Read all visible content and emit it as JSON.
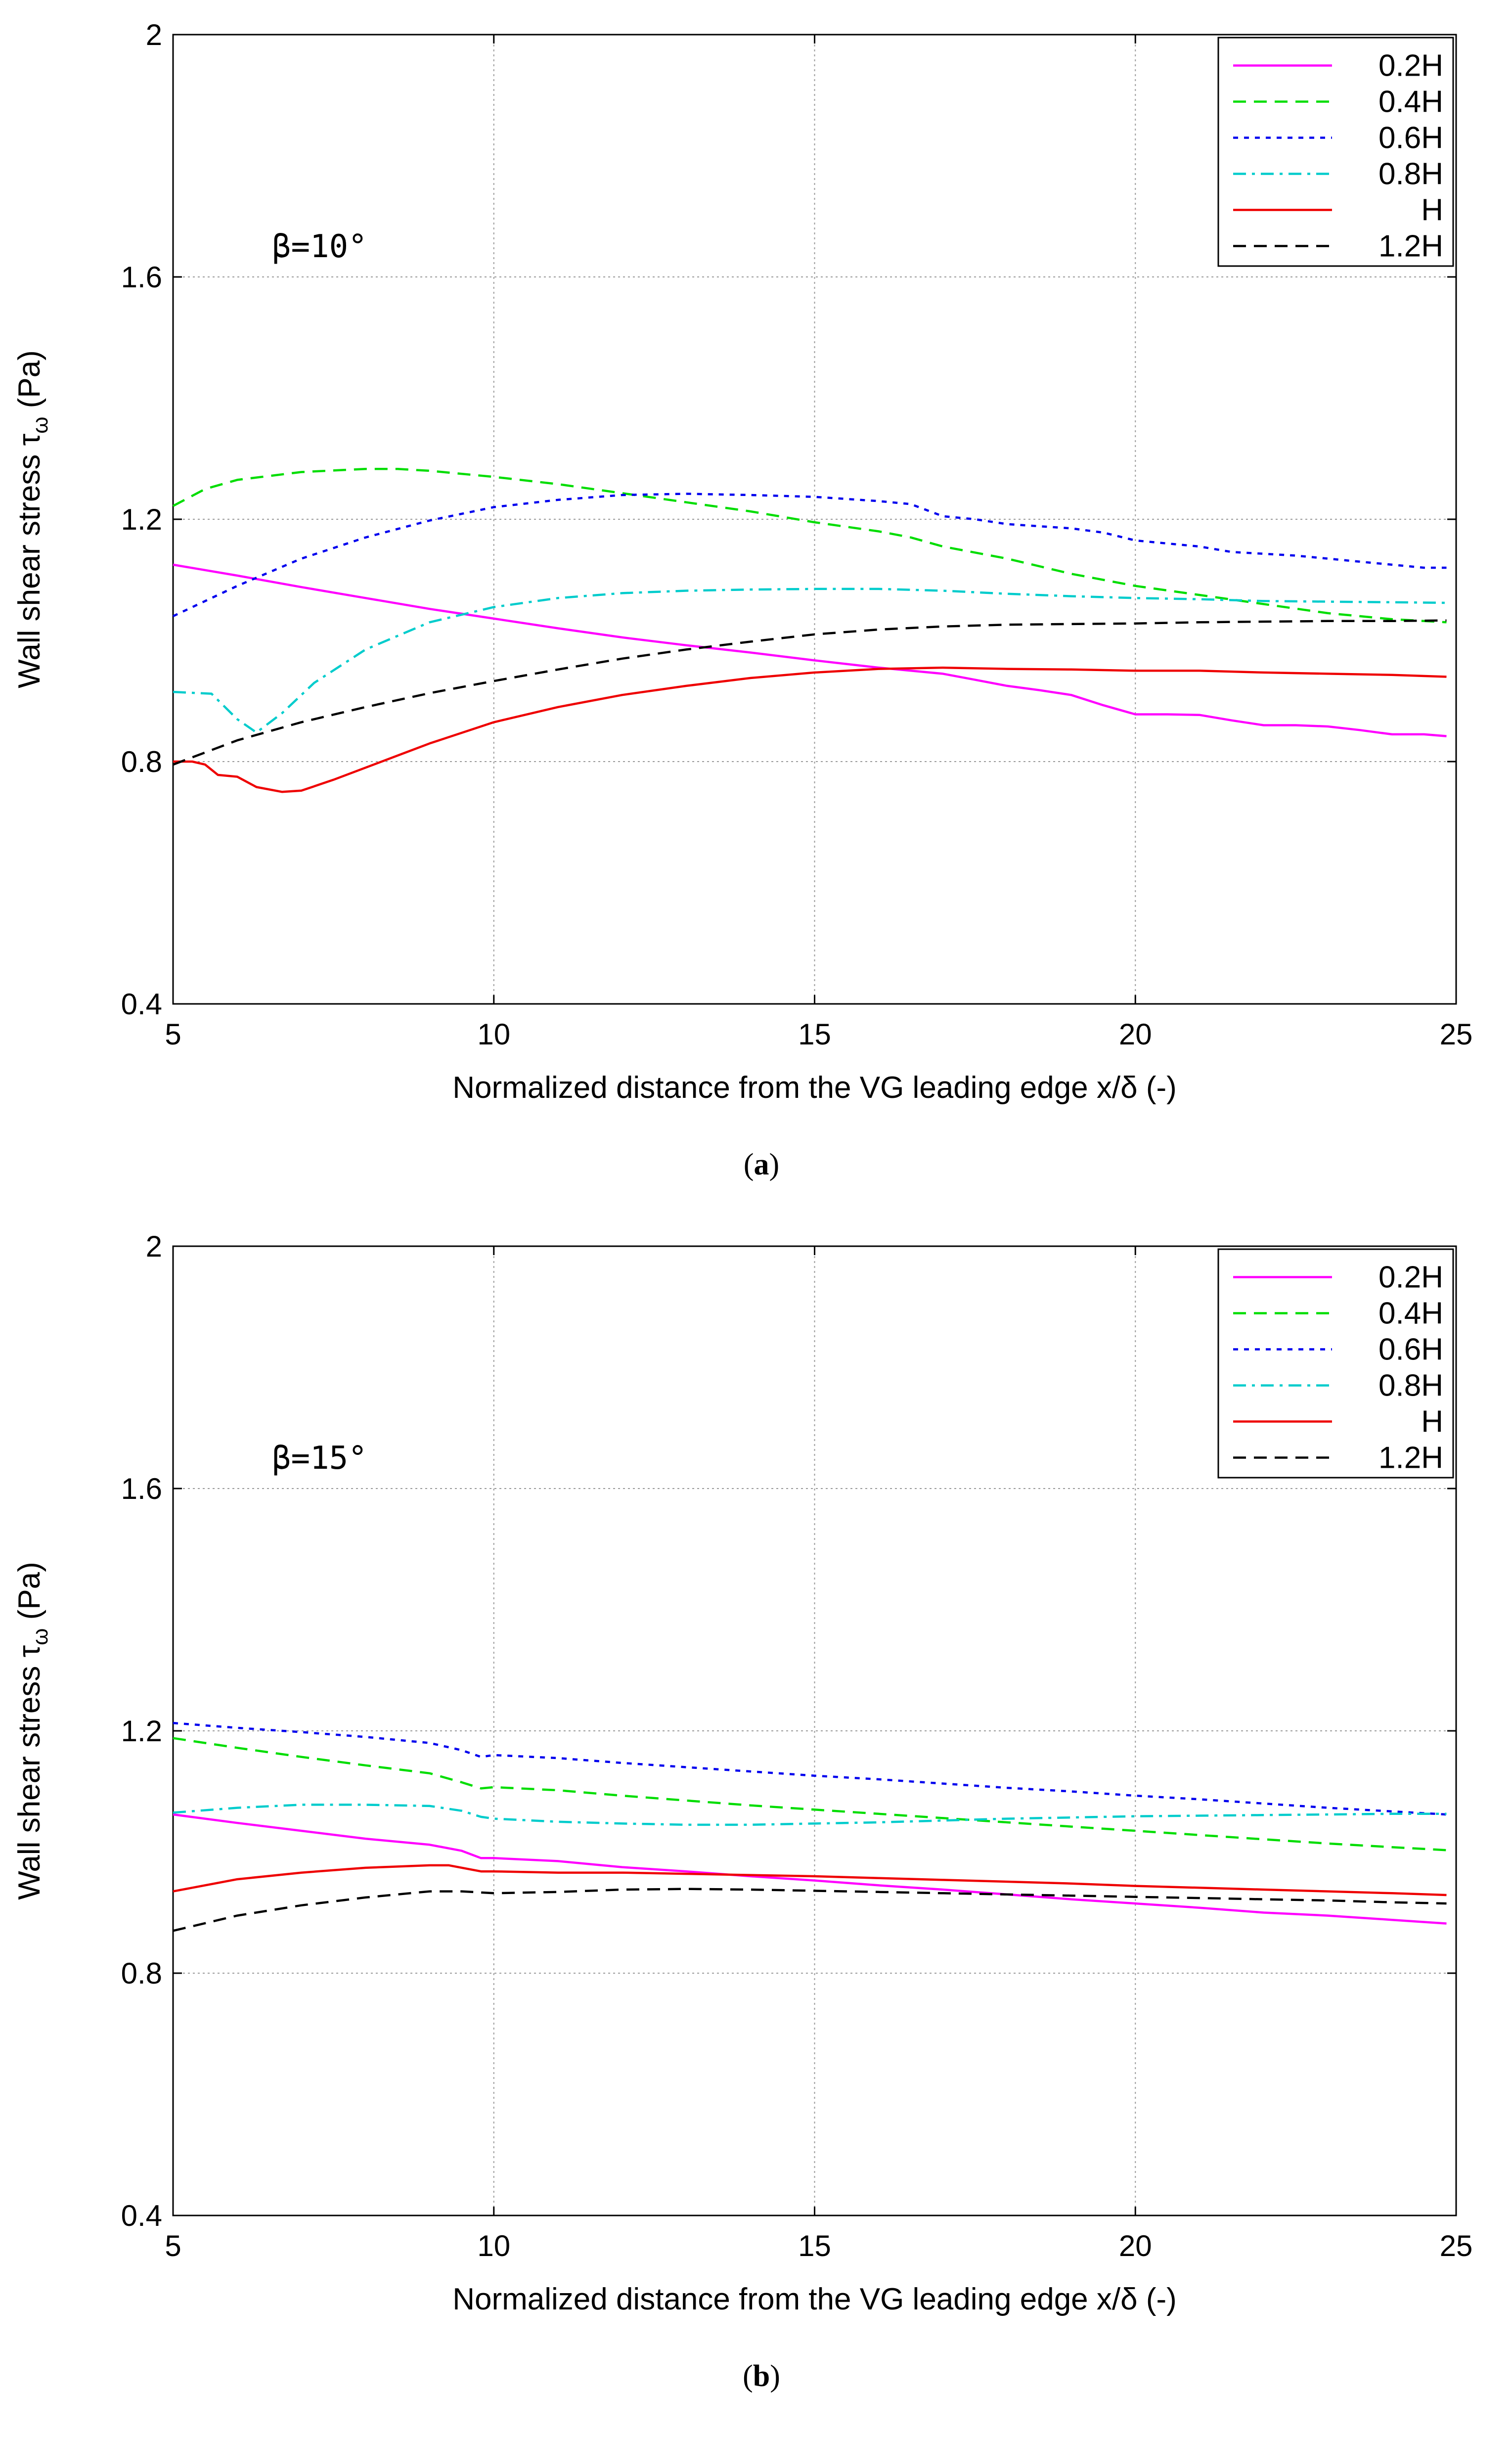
{
  "figure": {
    "panels": [
      {
        "caption_prefix": "(",
        "caption_letter": "a",
        "caption_suffix": ")"
      },
      {
        "caption_prefix": "(",
        "caption_letter": "b",
        "caption_suffix": ")"
      }
    ]
  },
  "chart_data": [
    {
      "type": "line",
      "title": "",
      "annotation": "β=10°",
      "xlabel": "Normalized distance from the VG leading edge x/δ (-)",
      "ylabel_main": "Wall shear stress  τ",
      "ylabel_sub": "ω",
      "ylabel_unit": " (Pa)",
      "xlim": [
        5,
        25
      ],
      "ylim": [
        0.4,
        2.0
      ],
      "xticks": [
        5,
        10,
        15,
        20,
        25
      ],
      "yticks": [
        0.4,
        0.8,
        1.2,
        1.6,
        2.0
      ],
      "xtick_labels": [
        "5",
        "10",
        "15",
        "20",
        "25"
      ],
      "ytick_labels": [
        "0.4",
        "0.8",
        "1.2",
        "1.6",
        "2"
      ],
      "grid": true,
      "legend_position": "top-right",
      "series": [
        {
          "name": "0.2H",
          "color": "#ff00ff",
          "dash": "solid",
          "x": [
            5,
            6,
            7,
            8,
            9,
            10,
            11,
            12,
            13,
            14,
            15,
            16,
            17,
            17.5,
            18,
            18.5,
            19,
            19.5,
            20,
            20.5,
            21,
            21.5,
            22,
            22.5,
            23,
            23.5,
            24,
            24.5,
            24.85
          ],
          "y": [
            1.125,
            1.107,
            1.088,
            1.07,
            1.052,
            1.036,
            1.02,
            1.005,
            0.992,
            0.98,
            0.967,
            0.955,
            0.945,
            0.935,
            0.925,
            0.918,
            0.91,
            0.893,
            0.878,
            0.878,
            0.877,
            0.868,
            0.86,
            0.86,
            0.858,
            0.852,
            0.845,
            0.845,
            0.842
          ]
        },
        {
          "name": "0.4H",
          "color": "#00dd00",
          "dash": "dash",
          "x": [
            5,
            5.5,
            6,
            7,
            8,
            8.5,
            9,
            10,
            11,
            12,
            13,
            14,
            15,
            16,
            16.5,
            17,
            18,
            19,
            20,
            21,
            22,
            23,
            24,
            24.85
          ],
          "y": [
            1.222,
            1.25,
            1.265,
            1.278,
            1.283,
            1.283,
            1.28,
            1.27,
            1.258,
            1.243,
            1.228,
            1.213,
            1.195,
            1.18,
            1.17,
            1.155,
            1.135,
            1.11,
            1.09,
            1.075,
            1.06,
            1.045,
            1.035,
            1.03
          ]
        },
        {
          "name": "0.6H",
          "color": "#0000ee",
          "dash": "dot",
          "x": [
            5,
            6,
            7,
            8,
            9,
            10,
            11,
            12,
            13,
            14,
            15,
            16,
            16.5,
            17,
            17.5,
            18,
            19,
            19.5,
            20,
            20.5,
            21,
            21.5,
            22,
            22.5,
            23,
            23.5,
            24,
            24.5,
            24.85
          ],
          "y": [
            1.04,
            1.09,
            1.135,
            1.17,
            1.198,
            1.22,
            1.232,
            1.24,
            1.242,
            1.24,
            1.237,
            1.23,
            1.225,
            1.205,
            1.2,
            1.192,
            1.185,
            1.178,
            1.165,
            1.16,
            1.155,
            1.146,
            1.143,
            1.14,
            1.135,
            1.13,
            1.125,
            1.12,
            1.12
          ]
        },
        {
          "name": "0.8H",
          "color": "#00cccc",
          "dash": "dashdot",
          "x": [
            5,
            5.6,
            6,
            6.3,
            6.7,
            7.2,
            8,
            9,
            10,
            11,
            12,
            13,
            14,
            15,
            16,
            17,
            18,
            19,
            20,
            21,
            22,
            23,
            24,
            24.85
          ],
          "y": [
            0.915,
            0.912,
            0.87,
            0.848,
            0.88,
            0.93,
            0.985,
            1.03,
            1.055,
            1.07,
            1.078,
            1.082,
            1.084,
            1.085,
            1.085,
            1.082,
            1.077,
            1.073,
            1.07,
            1.068,
            1.065,
            1.064,
            1.063,
            1.062
          ]
        },
        {
          "name": "H",
          "color": "#ee0000",
          "dash": "solid",
          "x": [
            5,
            5.3,
            5.5,
            5.7,
            6,
            6.3,
            6.7,
            7,
            7.5,
            8,
            9,
            10,
            11,
            12,
            13,
            14,
            15,
            16,
            17,
            18,
            19,
            20,
            21,
            22,
            23,
            24,
            24.85
          ],
          "y": [
            0.8,
            0.8,
            0.795,
            0.778,
            0.775,
            0.758,
            0.75,
            0.752,
            0.77,
            0.79,
            0.83,
            0.865,
            0.89,
            0.91,
            0.925,
            0.938,
            0.947,
            0.953,
            0.955,
            0.953,
            0.952,
            0.95,
            0.95,
            0.947,
            0.945,
            0.943,
            0.94
          ]
        },
        {
          "name": "1.2H",
          "color": "#000000",
          "dash": "dash",
          "x": [
            5,
            6,
            7,
            8,
            9,
            10,
            11,
            12,
            13,
            14,
            15,
            16,
            17,
            18,
            19,
            20,
            21,
            22,
            23,
            24,
            24.85
          ],
          "y": [
            0.795,
            0.835,
            0.865,
            0.89,
            0.913,
            0.933,
            0.952,
            0.97,
            0.985,
            0.998,
            1.01,
            1.018,
            1.023,
            1.026,
            1.027,
            1.028,
            1.03,
            1.031,
            1.032,
            1.032,
            1.033
          ]
        }
      ]
    },
    {
      "type": "line",
      "title": "",
      "annotation": "β=15°",
      "xlabel": "Normalized distance from the VG leading edge x/δ (-)",
      "ylabel_main": "Wall shear stress  τ",
      "ylabel_sub": "ω",
      "ylabel_unit": " (Pa)",
      "xlim": [
        5,
        25
      ],
      "ylim": [
        0.4,
        2.0
      ],
      "xticks": [
        5,
        10,
        15,
        20,
        25
      ],
      "yticks": [
        0.4,
        0.8,
        1.2,
        1.6,
        2.0
      ],
      "xtick_labels": [
        "5",
        "10",
        "15",
        "20",
        "25"
      ],
      "ytick_labels": [
        "0.4",
        "0.8",
        "1.2",
        "1.6",
        "2"
      ],
      "grid": true,
      "legend_position": "top-right",
      "series": [
        {
          "name": "0.2H",
          "color": "#ff00ff",
          "dash": "solid",
          "x": [
            5,
            6,
            7,
            8,
            9,
            9.5,
            9.8,
            10,
            11,
            12,
            13,
            14,
            15,
            16,
            17,
            18,
            19,
            20,
            21,
            22,
            23,
            24,
            24.85
          ],
          "y": [
            1.062,
            1.048,
            1.035,
            1.022,
            1.012,
            1.002,
            0.99,
            0.99,
            0.985,
            0.975,
            0.968,
            0.96,
            0.953,
            0.945,
            0.938,
            0.93,
            0.922,
            0.915,
            0.908,
            0.9,
            0.895,
            0.888,
            0.882
          ]
        },
        {
          "name": "0.4H",
          "color": "#00dd00",
          "dash": "dash",
          "x": [
            5,
            6,
            7,
            8,
            9,
            9.5,
            9.8,
            10,
            11,
            12,
            13,
            14,
            15,
            16,
            17,
            18,
            19,
            20,
            21,
            22,
            23,
            24,
            24.85
          ],
          "y": [
            1.188,
            1.172,
            1.157,
            1.143,
            1.13,
            1.115,
            1.105,
            1.107,
            1.102,
            1.093,
            1.085,
            1.077,
            1.07,
            1.063,
            1.056,
            1.049,
            1.042,
            1.035,
            1.028,
            1.021,
            1.014,
            1.008,
            1.003
          ]
        },
        {
          "name": "0.6H",
          "color": "#0000ee",
          "dash": "dot",
          "x": [
            5,
            6,
            7,
            8,
            9,
            9.5,
            9.8,
            10,
            11,
            12,
            13,
            14,
            15,
            16,
            17,
            18,
            19,
            20,
            21,
            22,
            23,
            24,
            24.85
          ],
          "y": [
            1.213,
            1.205,
            1.198,
            1.19,
            1.18,
            1.168,
            1.157,
            1.16,
            1.155,
            1.147,
            1.14,
            1.133,
            1.126,
            1.12,
            1.113,
            1.106,
            1.1,
            1.093,
            1.087,
            1.08,
            1.073,
            1.067,
            1.062
          ]
        },
        {
          "name": "0.8H",
          "color": "#00cccc",
          "dash": "dashdot",
          "x": [
            5,
            6,
            7,
            8,
            9,
            9.5,
            9.8,
            10,
            11,
            12,
            13,
            14,
            15,
            16,
            17,
            18,
            19,
            20,
            21,
            22,
            23,
            24,
            24.85
          ],
          "y": [
            1.065,
            1.073,
            1.078,
            1.078,
            1.076,
            1.068,
            1.058,
            1.055,
            1.05,
            1.047,
            1.045,
            1.045,
            1.047,
            1.049,
            1.052,
            1.055,
            1.057,
            1.059,
            1.06,
            1.061,
            1.062,
            1.063,
            1.063
          ]
        },
        {
          "name": "H",
          "color": "#ee0000",
          "dash": "solid",
          "x": [
            5,
            6,
            7,
            8,
            9,
            9.3,
            9.8,
            10,
            11,
            12,
            13,
            14,
            15,
            16,
            17,
            18,
            19,
            20,
            21,
            22,
            23,
            24,
            24.85
          ],
          "y": [
            0.935,
            0.955,
            0.966,
            0.974,
            0.978,
            0.978,
            0.968,
            0.968,
            0.966,
            0.966,
            0.964,
            0.962,
            0.96,
            0.957,
            0.954,
            0.951,
            0.948,
            0.944,
            0.941,
            0.938,
            0.935,
            0.932,
            0.929
          ]
        },
        {
          "name": "1.2H",
          "color": "#000000",
          "dash": "dash",
          "x": [
            5,
            6,
            7,
            8,
            9,
            9.5,
            10,
            11,
            12,
            13,
            14,
            15,
            16,
            17,
            18,
            19,
            20,
            21,
            22,
            23,
            24,
            24.85
          ],
          "y": [
            0.87,
            0.895,
            0.912,
            0.925,
            0.935,
            0.935,
            0.932,
            0.934,
            0.938,
            0.939,
            0.938,
            0.936,
            0.934,
            0.932,
            0.93,
            0.928,
            0.926,
            0.924,
            0.922,
            0.92,
            0.917,
            0.915
          ]
        }
      ]
    }
  ]
}
